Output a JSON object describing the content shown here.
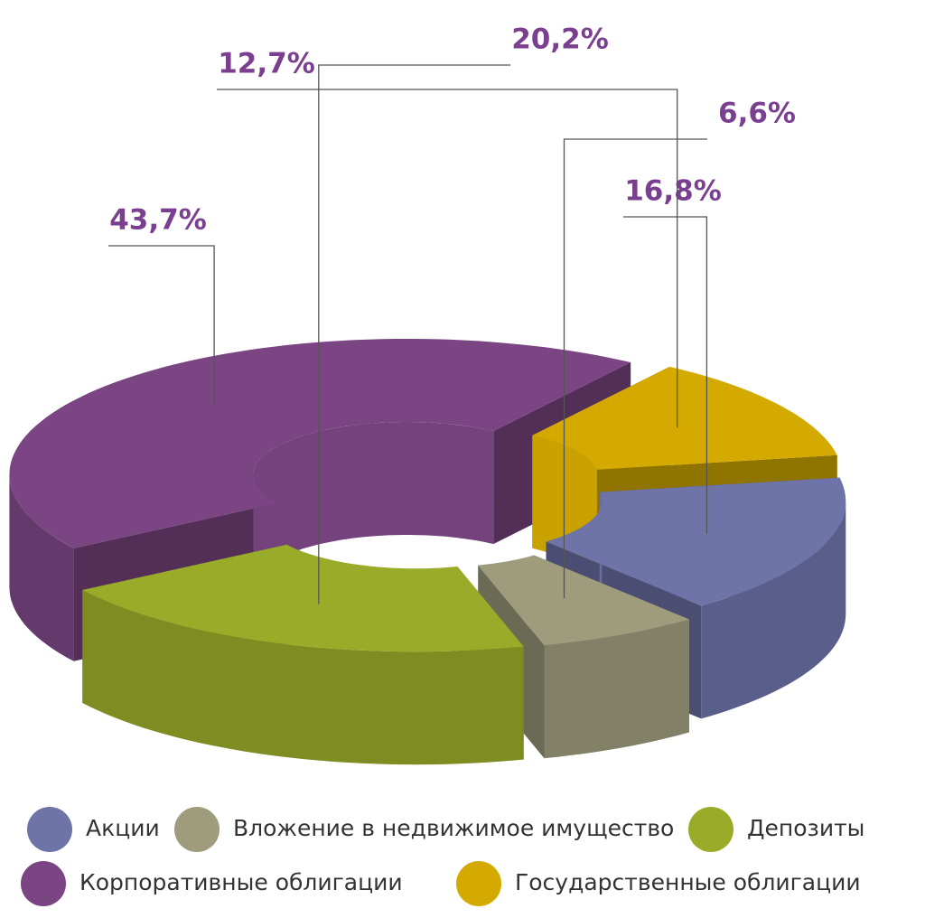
{
  "chart_data": {
    "type": "pie",
    "categories": [
      "Акции",
      "Вложение в недвижимое имущество",
      "Депозиты",
      "Корпоративные облигации",
      "Государственные облигации"
    ],
    "values": [
      16.8,
      6.6,
      20.2,
      43.7,
      12.7
    ],
    "value_labels": [
      "16,8%",
      "6,6%",
      "20,2%",
      "43,7%",
      "12,7%"
    ],
    "colors": [
      "#6e73a8",
      "#9e9c7c",
      "#9aab2a",
      "#7a4582",
      "#d4aa00"
    ]
  }
}
